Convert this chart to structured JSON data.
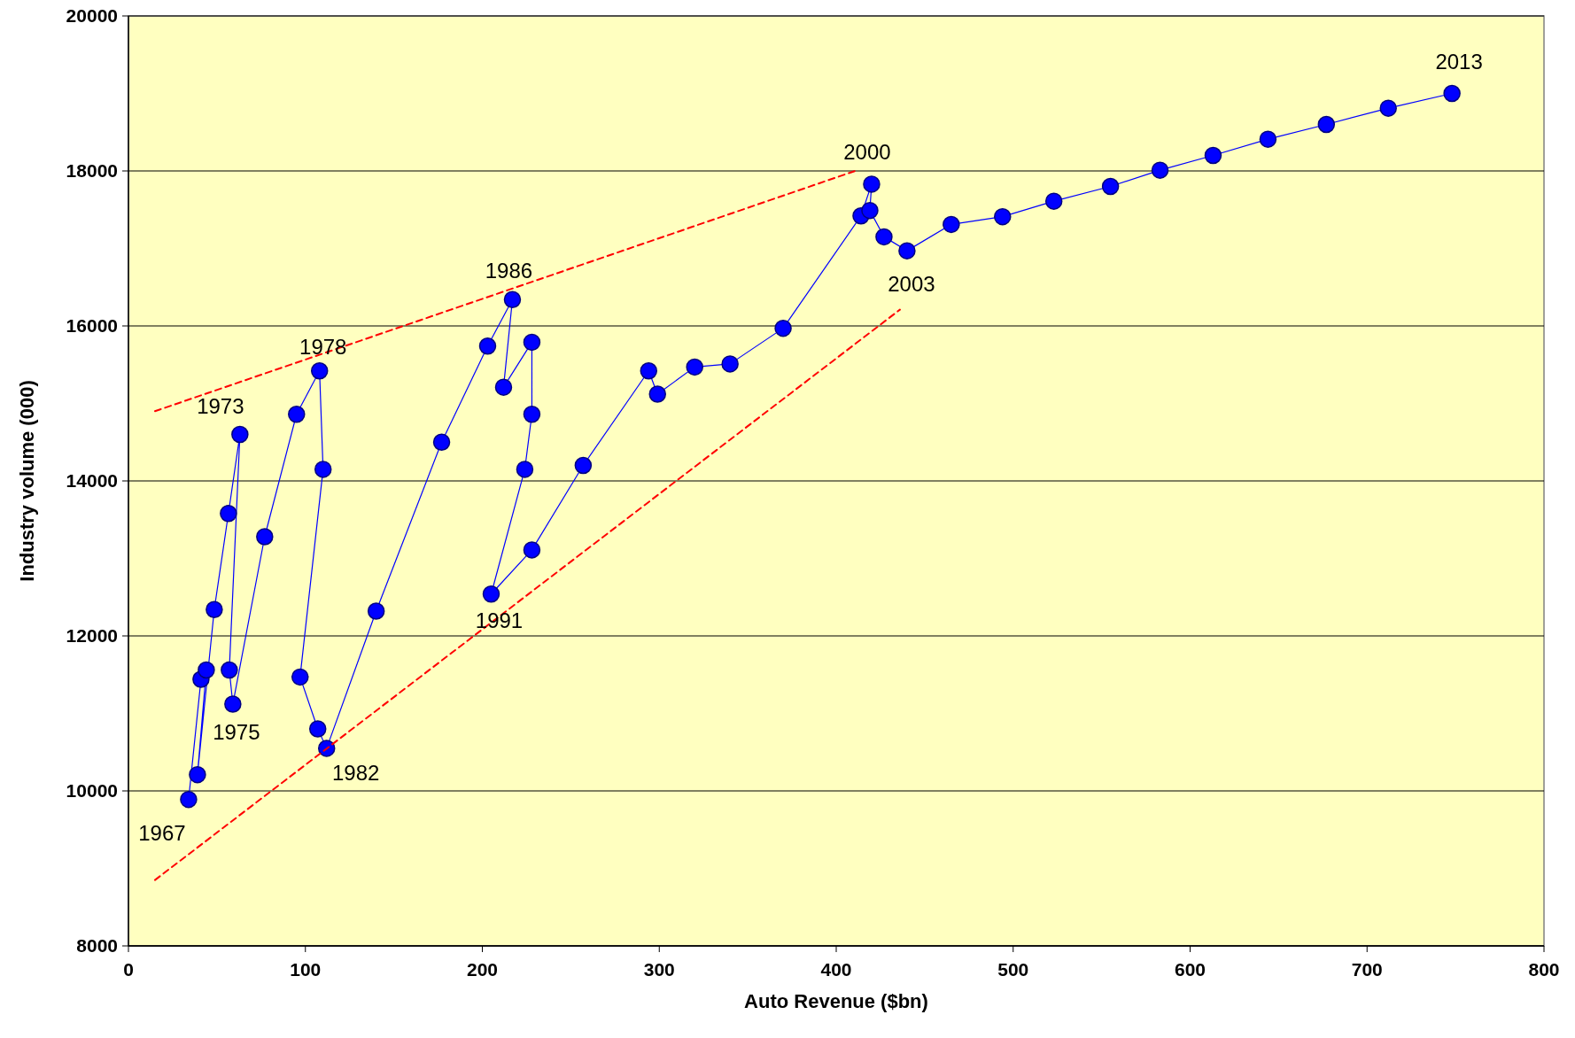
{
  "chart_data": {
    "type": "line",
    "xlabel": "Auto Revenue ($bn)",
    "ylabel": "Industry volume (000)",
    "xlim": [
      0,
      800
    ],
    "xticks": [
      0,
      100,
      200,
      300,
      400,
      500,
      600,
      700,
      800
    ],
    "ylim": [
      8000,
      20000
    ],
    "yticks": [
      8000,
      10000,
      12000,
      14000,
      16000,
      18000,
      20000
    ],
    "grid": "y",
    "series": [
      {
        "color": "#0000ff",
        "marker": "circle",
        "line_style": "solid",
        "x": [
          34,
          41,
          44,
          39,
          48.5,
          56.5,
          63,
          57,
          59,
          77,
          95,
          108,
          110,
          97,
          107,
          112,
          140,
          177,
          203,
          217,
          212,
          228,
          228,
          224,
          205,
          228,
          257,
          294,
          299,
          320,
          340,
          370,
          414,
          420,
          419,
          427,
          440,
          465,
          494,
          523,
          555,
          583,
          613,
          644,
          677,
          712,
          748
        ],
        "values": [
          9890,
          11440,
          11560,
          10210,
          12340,
          13580,
          14600,
          11560,
          11120,
          13280,
          14860,
          15420,
          14150,
          11470,
          10800,
          10550,
          12320,
          14500,
          15740,
          16340,
          15210,
          15790,
          14860,
          14150,
          12540,
          13110,
          14200,
          15420,
          15120,
          15470,
          15510,
          15970,
          17420,
          17830,
          17490,
          17150,
          16970,
          17310,
          17410,
          17610,
          17800,
          18010,
          18200,
          18410,
          18600,
          18810,
          19000
        ]
      },
      {
        "type": "line",
        "color": "#ff0000",
        "marker": "none",
        "line_style": "dashed",
        "x": [
          15,
          412
        ],
        "values": [
          14900,
          18010
        ]
      },
      {
        "type": "line",
        "color": "#ff0000",
        "marker": "none",
        "line_style": "dashed",
        "x": [
          15,
          436
        ],
        "values": [
          8850,
          16210
        ]
      }
    ],
    "annotations": [
      {
        "text": "1967",
        "x": 34,
        "y": 9890
      },
      {
        "text": "1973",
        "x": 63,
        "y": 14600
      },
      {
        "text": "1975",
        "x": 59,
        "y": 11120
      },
      {
        "text": "1978",
        "x": 108,
        "y": 15420
      },
      {
        "text": "1982",
        "x": 112,
        "y": 10550
      },
      {
        "text": "1986",
        "x": 217,
        "y": 16340
      },
      {
        "text": "1991",
        "x": 205,
        "y": 12540
      },
      {
        "text": "2000",
        "x": 420,
        "y": 17830
      },
      {
        "text": "2003",
        "x": 440,
        "y": 16970
      },
      {
        "text": "2013",
        "x": 748,
        "y": 19000
      }
    ]
  }
}
